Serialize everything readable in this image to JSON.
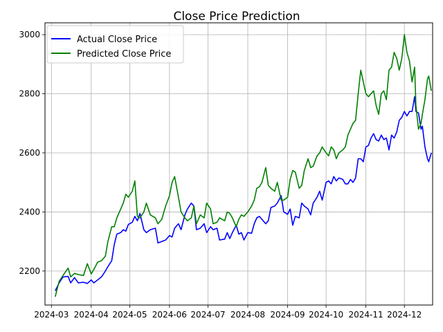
{
  "chart_data": {
    "type": "line",
    "title": "Close Price Prediction",
    "xlabel": "",
    "ylabel": "",
    "x_ticks": [
      "2024-03",
      "2024-04",
      "2024-05",
      "2024-06",
      "2024-07",
      "2024-08",
      "2024-09",
      "2024-10",
      "2024-11",
      "2024-12"
    ],
    "xlim": [
      "2024-02-25",
      "2024-12-23"
    ],
    "y_ticks": [
      2200,
      2400,
      2600,
      2800,
      3000
    ],
    "ylim": [
      2085,
      3040
    ],
    "grid": true,
    "legend": "top-left",
    "series": [
      {
        "name": "Actual Close Price",
        "color": "#0000ff",
        "points": [
          [
            "2024-03-04",
            2133
          ],
          [
            "2024-03-07",
            2160
          ],
          [
            "2024-03-10",
            2180
          ],
          [
            "2024-03-14",
            2182
          ],
          [
            "2024-03-16",
            2160
          ],
          [
            "2024-03-19",
            2178
          ],
          [
            "2024-03-22",
            2160
          ],
          [
            "2024-03-26",
            2162
          ],
          [
            "2024-03-29",
            2158
          ],
          [
            "2024-04-01",
            2170
          ],
          [
            "2024-04-03",
            2160
          ],
          [
            "2024-04-06",
            2170
          ],
          [
            "2024-04-09",
            2180
          ],
          [
            "2024-04-12",
            2200
          ],
          [
            "2024-04-14",
            2215
          ],
          [
            "2024-04-17",
            2235
          ],
          [
            "2024-04-19",
            2290
          ],
          [
            "2024-04-21",
            2325
          ],
          [
            "2024-04-24",
            2330
          ],
          [
            "2024-04-26",
            2340
          ],
          [
            "2024-04-28",
            2335
          ],
          [
            "2024-04-30",
            2358
          ],
          [
            "2024-05-03",
            2365
          ],
          [
            "2024-05-05",
            2385
          ],
          [
            "2024-05-07",
            2370
          ],
          [
            "2024-05-09",
            2395
          ],
          [
            "2024-05-12",
            2340
          ],
          [
            "2024-05-14",
            2330
          ],
          [
            "2024-05-17",
            2340
          ],
          [
            "2024-05-21",
            2345
          ],
          [
            "2024-05-23",
            2295
          ],
          [
            "2024-05-26",
            2300
          ],
          [
            "2024-05-29",
            2305
          ],
          [
            "2024-06-01",
            2320
          ],
          [
            "2024-06-03",
            2315
          ],
          [
            "2024-06-05",
            2345
          ],
          [
            "2024-06-08",
            2360
          ],
          [
            "2024-06-10",
            2340
          ],
          [
            "2024-06-13",
            2390
          ],
          [
            "2024-06-15",
            2410
          ],
          [
            "2024-06-18",
            2430
          ],
          [
            "2024-06-20",
            2420
          ],
          [
            "2024-06-22",
            2340
          ],
          [
            "2024-06-25",
            2345
          ],
          [
            "2024-06-28",
            2360
          ],
          [
            "2024-06-30",
            2330
          ],
          [
            "2024-07-03",
            2350
          ],
          [
            "2024-07-05",
            2340
          ],
          [
            "2024-07-08",
            2345
          ],
          [
            "2024-07-10",
            2305
          ],
          [
            "2024-07-14",
            2308
          ],
          [
            "2024-07-16",
            2330
          ],
          [
            "2024-07-18",
            2310
          ],
          [
            "2024-07-20",
            2330
          ],
          [
            "2024-07-23",
            2355
          ],
          [
            "2024-07-25",
            2325
          ],
          [
            "2024-07-27",
            2330
          ],
          [
            "2024-07-29",
            2305
          ],
          [
            "2024-08-01",
            2330
          ],
          [
            "2024-08-04",
            2328
          ],
          [
            "2024-08-06",
            2360
          ],
          [
            "2024-08-08",
            2380
          ],
          [
            "2024-08-10",
            2385
          ],
          [
            "2024-08-12",
            2375
          ],
          [
            "2024-08-15",
            2360
          ],
          [
            "2024-08-17",
            2370
          ],
          [
            "2024-08-19",
            2415
          ],
          [
            "2024-08-22",
            2420
          ],
          [
            "2024-08-24",
            2430
          ],
          [
            "2024-08-27",
            2455
          ],
          [
            "2024-08-29",
            2400
          ],
          [
            "2024-09-01",
            2392
          ],
          [
            "2024-09-03",
            2410
          ],
          [
            "2024-09-05",
            2355
          ],
          [
            "2024-09-07",
            2385
          ],
          [
            "2024-09-10",
            2380
          ],
          [
            "2024-09-12",
            2430
          ],
          [
            "2024-09-14",
            2420
          ],
          [
            "2024-09-17",
            2410
          ],
          [
            "2024-09-19",
            2390
          ],
          [
            "2024-09-21",
            2430
          ],
          [
            "2024-09-24",
            2450
          ],
          [
            "2024-09-26",
            2470
          ],
          [
            "2024-09-28",
            2440
          ],
          [
            "2024-10-01",
            2500
          ],
          [
            "2024-10-03",
            2505
          ],
          [
            "2024-10-05",
            2495
          ],
          [
            "2024-10-07",
            2520
          ],
          [
            "2024-10-09",
            2505
          ],
          [
            "2024-10-11",
            2515
          ],
          [
            "2024-10-14",
            2510
          ],
          [
            "2024-10-16",
            2495
          ],
          [
            "2024-10-18",
            2495
          ],
          [
            "2024-10-20",
            2510
          ],
          [
            "2024-10-22",
            2500
          ],
          [
            "2024-10-24",
            2515
          ],
          [
            "2024-10-26",
            2580
          ],
          [
            "2024-10-28",
            2580
          ],
          [
            "2024-10-30",
            2570
          ],
          [
            "2024-11-01",
            2620
          ],
          [
            "2024-11-03",
            2625
          ],
          [
            "2024-11-05",
            2650
          ],
          [
            "2024-11-07",
            2665
          ],
          [
            "2024-11-09",
            2645
          ],
          [
            "2024-11-11",
            2640
          ],
          [
            "2024-11-13",
            2660
          ],
          [
            "2024-11-15",
            2645
          ],
          [
            "2024-11-17",
            2650
          ],
          [
            "2024-11-19",
            2610
          ],
          [
            "2024-11-21",
            2660
          ],
          [
            "2024-11-23",
            2650
          ],
          [
            "2024-11-25",
            2670
          ],
          [
            "2024-11-27",
            2710
          ],
          [
            "2024-11-29",
            2720
          ],
          [
            "2024-12-01",
            2740
          ],
          [
            "2024-12-03",
            2725
          ],
          [
            "2024-12-05",
            2740
          ],
          [
            "2024-12-07",
            2740
          ],
          [
            "2024-12-09",
            2790
          ],
          [
            "2024-12-10",
            2740
          ],
          [
            "2024-12-12",
            2735
          ],
          [
            "2024-12-14",
            2680
          ],
          [
            "2024-12-15",
            2690
          ],
          [
            "2024-12-17",
            2620
          ],
          [
            "2024-12-19",
            2580
          ],
          [
            "2024-12-20",
            2570
          ],
          [
            "2024-12-22",
            2600
          ]
        ]
      },
      {
        "name": "Predicted Close Price",
        "color": "#008000",
        "points": [
          [
            "2024-03-04",
            2113
          ],
          [
            "2024-03-07",
            2165
          ],
          [
            "2024-03-10",
            2185
          ],
          [
            "2024-03-14",
            2210
          ],
          [
            "2024-03-16",
            2180
          ],
          [
            "2024-03-19",
            2192
          ],
          [
            "2024-03-22",
            2188
          ],
          [
            "2024-03-26",
            2185
          ],
          [
            "2024-03-29",
            2225
          ],
          [
            "2024-04-01",
            2190
          ],
          [
            "2024-04-03",
            2205
          ],
          [
            "2024-04-06",
            2230
          ],
          [
            "2024-04-09",
            2235
          ],
          [
            "2024-04-12",
            2250
          ],
          [
            "2024-04-14",
            2300
          ],
          [
            "2024-04-17",
            2350
          ],
          [
            "2024-04-19",
            2350
          ],
          [
            "2024-04-21",
            2380
          ],
          [
            "2024-04-24",
            2410
          ],
          [
            "2024-04-26",
            2430
          ],
          [
            "2024-04-28",
            2460
          ],
          [
            "2024-04-30",
            2450
          ],
          [
            "2024-05-03",
            2470
          ],
          [
            "2024-05-05",
            2505
          ],
          [
            "2024-05-07",
            2385
          ],
          [
            "2024-05-09",
            2380
          ],
          [
            "2024-05-12",
            2400
          ],
          [
            "2024-05-14",
            2430
          ],
          [
            "2024-05-17",
            2390
          ],
          [
            "2024-05-21",
            2380
          ],
          [
            "2024-05-23",
            2360
          ],
          [
            "2024-05-26",
            2375
          ],
          [
            "2024-05-29",
            2420
          ],
          [
            "2024-06-01",
            2455
          ],
          [
            "2024-06-03",
            2500
          ],
          [
            "2024-06-05",
            2520
          ],
          [
            "2024-06-08",
            2450
          ],
          [
            "2024-06-10",
            2400
          ],
          [
            "2024-06-13",
            2380
          ],
          [
            "2024-06-15",
            2370
          ],
          [
            "2024-06-18",
            2380
          ],
          [
            "2024-06-20",
            2420
          ],
          [
            "2024-06-22",
            2360
          ],
          [
            "2024-06-25",
            2390
          ],
          [
            "2024-06-28",
            2380
          ],
          [
            "2024-06-30",
            2430
          ],
          [
            "2024-07-03",
            2410
          ],
          [
            "2024-07-05",
            2360
          ],
          [
            "2024-07-08",
            2365
          ],
          [
            "2024-07-10",
            2380
          ],
          [
            "2024-07-14",
            2370
          ],
          [
            "2024-07-16",
            2400
          ],
          [
            "2024-07-18",
            2395
          ],
          [
            "2024-07-20",
            2380
          ],
          [
            "2024-07-23",
            2350
          ],
          [
            "2024-07-25",
            2375
          ],
          [
            "2024-07-27",
            2390
          ],
          [
            "2024-07-29",
            2385
          ],
          [
            "2024-08-01",
            2400
          ],
          [
            "2024-08-04",
            2420
          ],
          [
            "2024-08-06",
            2440
          ],
          [
            "2024-08-08",
            2480
          ],
          [
            "2024-08-10",
            2485
          ],
          [
            "2024-08-12",
            2500
          ],
          [
            "2024-08-15",
            2550
          ],
          [
            "2024-08-17",
            2490
          ],
          [
            "2024-08-19",
            2480
          ],
          [
            "2024-08-22",
            2470
          ],
          [
            "2024-08-24",
            2500
          ],
          [
            "2024-08-27",
            2440
          ],
          [
            "2024-08-29",
            2440
          ],
          [
            "2024-09-01",
            2450
          ],
          [
            "2024-09-03",
            2510
          ],
          [
            "2024-09-05",
            2540
          ],
          [
            "2024-09-07",
            2535
          ],
          [
            "2024-09-10",
            2480
          ],
          [
            "2024-09-12",
            2490
          ],
          [
            "2024-09-14",
            2540
          ],
          [
            "2024-09-17",
            2580
          ],
          [
            "2024-09-19",
            2550
          ],
          [
            "2024-09-21",
            2555
          ],
          [
            "2024-09-24",
            2590
          ],
          [
            "2024-09-26",
            2600
          ],
          [
            "2024-09-28",
            2620
          ],
          [
            "2024-10-01",
            2600
          ],
          [
            "2024-10-03",
            2590
          ],
          [
            "2024-10-05",
            2620
          ],
          [
            "2024-10-07",
            2610
          ],
          [
            "2024-10-09",
            2580
          ],
          [
            "2024-10-11",
            2600
          ],
          [
            "2024-10-14",
            2610
          ],
          [
            "2024-10-16",
            2620
          ],
          [
            "2024-10-18",
            2660
          ],
          [
            "2024-10-20",
            2680
          ],
          [
            "2024-10-22",
            2700
          ],
          [
            "2024-10-24",
            2710
          ],
          [
            "2024-10-26",
            2800
          ],
          [
            "2024-10-28",
            2880
          ],
          [
            "2024-10-30",
            2840
          ],
          [
            "2024-11-01",
            2800
          ],
          [
            "2024-11-03",
            2790
          ],
          [
            "2024-11-05",
            2800
          ],
          [
            "2024-11-07",
            2810
          ],
          [
            "2024-11-09",
            2760
          ],
          [
            "2024-11-11",
            2730
          ],
          [
            "2024-11-13",
            2800
          ],
          [
            "2024-11-15",
            2810
          ],
          [
            "2024-11-17",
            2780
          ],
          [
            "2024-11-19",
            2880
          ],
          [
            "2024-11-21",
            2890
          ],
          [
            "2024-11-23",
            2940
          ],
          [
            "2024-11-25",
            2920
          ],
          [
            "2024-11-27",
            2880
          ],
          [
            "2024-11-29",
            2920
          ],
          [
            "2024-12-01",
            3000
          ],
          [
            "2024-12-03",
            2940
          ],
          [
            "2024-12-05",
            2910
          ],
          [
            "2024-12-07",
            2840
          ],
          [
            "2024-12-09",
            2890
          ],
          [
            "2024-12-10",
            2760
          ],
          [
            "2024-12-12",
            2680
          ],
          [
            "2024-12-14",
            2700
          ],
          [
            "2024-12-15",
            2730
          ],
          [
            "2024-12-17",
            2780
          ],
          [
            "2024-12-19",
            2850
          ],
          [
            "2024-12-20",
            2860
          ],
          [
            "2024-12-22",
            2810
          ]
        ]
      }
    ]
  }
}
